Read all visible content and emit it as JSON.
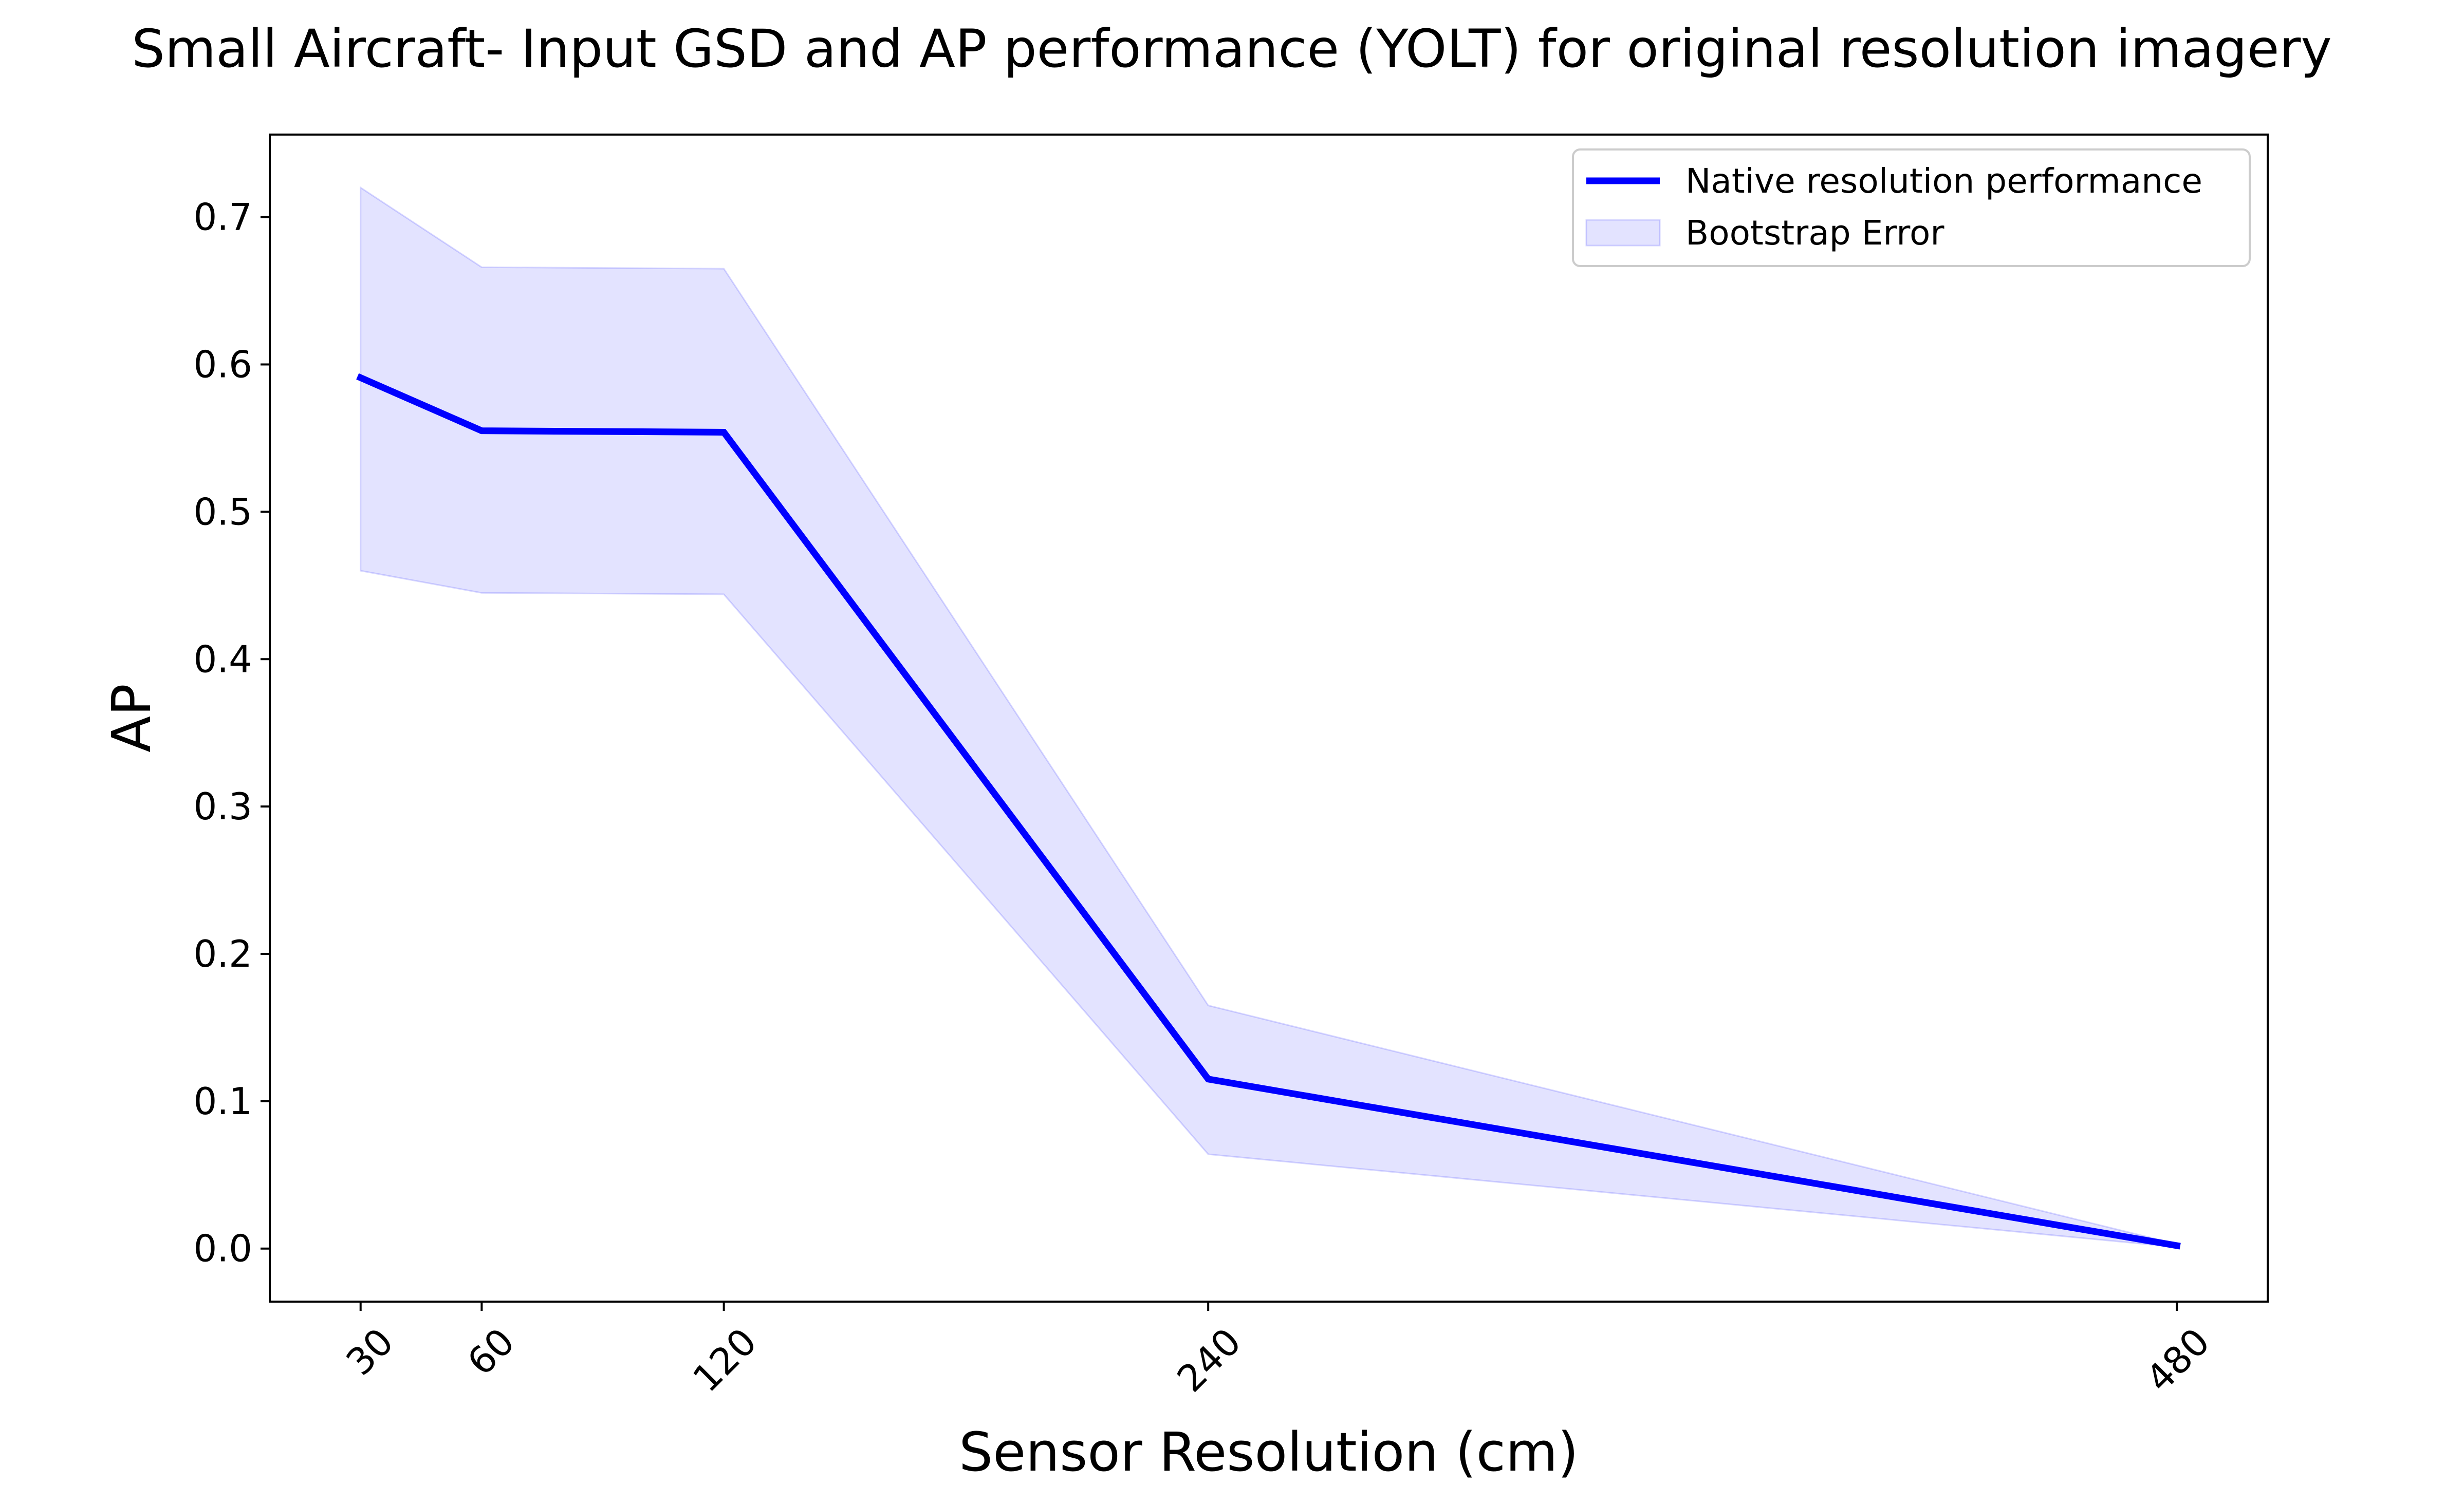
{
  "chart_data": {
    "type": "line",
    "title": "Small Aircraft- Input GSD and AP performance (YOLT) for original resolution imagery",
    "xlabel": "Sensor Resolution (cm)",
    "ylabel": "AP",
    "x": [
      30,
      60,
      120,
      240,
      480
    ],
    "x_tick_labels": [
      "30",
      "60",
      "120",
      "240",
      "480"
    ],
    "y_ticks": [
      0.0,
      0.1,
      0.2,
      0.3,
      0.4,
      0.5,
      0.6,
      0.7
    ],
    "y_tick_labels": [
      "0.0",
      "0.1",
      "0.2",
      "0.3",
      "0.4",
      "0.5",
      "0.6",
      "0.7"
    ],
    "xlim": [
      7.5,
      502.5
    ],
    "ylim": [
      -0.036,
      0.756
    ],
    "grid": false,
    "legend_position": "top-right",
    "series": [
      {
        "name": "Native resolution performance",
        "kind": "line",
        "color": "#0000ff",
        "values": [
          0.591,
          0.555,
          0.554,
          0.115,
          0.002
        ]
      },
      {
        "name": "Bootstrap Error",
        "kind": "band",
        "color": "#0000ff",
        "opacity": 0.11,
        "upper": [
          0.72,
          0.666,
          0.665,
          0.165,
          0.003
        ],
        "lower": [
          0.46,
          0.445,
          0.444,
          0.064,
          0.001
        ]
      }
    ]
  }
}
